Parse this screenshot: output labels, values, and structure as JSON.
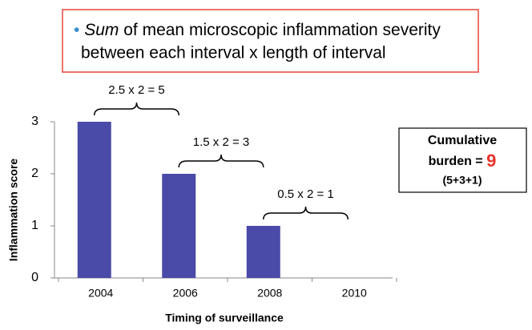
{
  "header": {
    "bullet": "•",
    "lines": [
      "Sum",
      "of mean microscopic inflammation severity",
      "between each interval x length of interval"
    ]
  },
  "chart_data": {
    "type": "bar",
    "categories": [
      "2004",
      "2006",
      "2008",
      "2010"
    ],
    "values": [
      3,
      2,
      1,
      0
    ],
    "color": "#4a4aa8",
    "ylim": [
      0,
      3
    ],
    "yticks": [
      0,
      1,
      2,
      3
    ],
    "xlabel": "Timing of surveillance",
    "ylabel": "Inflammation score",
    "annotations": [
      "2.5 x 2 = 5",
      "1.5 x 2 = 3",
      "0.5 x 2 = 1"
    ]
  },
  "callout": {
    "line1": "Cumulative",
    "line2": "burden =",
    "total": "9",
    "line3": "(5+3+1)"
  }
}
